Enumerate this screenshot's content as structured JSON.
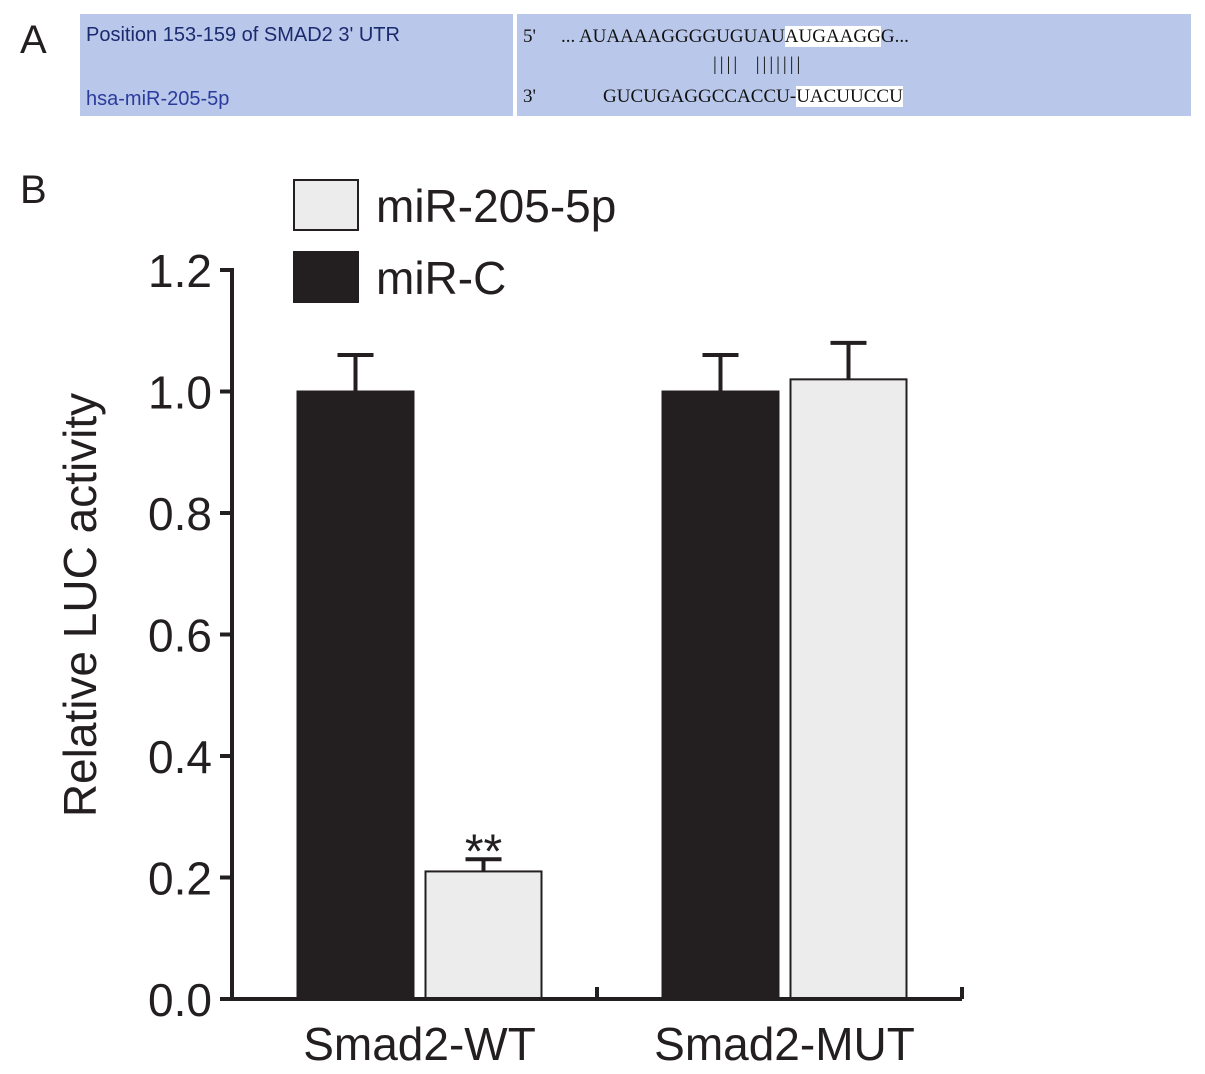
{
  "panels": {
    "a": "A",
    "b": "B"
  },
  "alignment": {
    "utr_label": "Position 153-159 of SMAD2 3' UTR",
    "mir_label": "hsa-miR-205-5p",
    "top_end": "5'",
    "bottom_end": "3'",
    "top_prefix": "...",
    "top_seq_plain": "AUAAAAGGGGUGUAU",
    "top_seq_highlight": "AUGAAGG",
    "top_seq_tail": "G...",
    "pairing": "||||  |||||||",
    "bottom_seq_plain": "GUCUGAGGCCACCU-",
    "bottom_seq_highlight": "UACUUCCU"
  },
  "colors": {
    "box": "#b9c8ea",
    "mir_c": "#231f20",
    "mir_205": "#ececec",
    "axis": "#231f20"
  },
  "chart_data": {
    "type": "bar",
    "ylabel": "Relative LUC activity",
    "xlabel": "",
    "ylim": [
      0,
      1.2
    ],
    "yticks": [
      "0.0",
      "0.2",
      "0.4",
      "0.6",
      "0.8",
      "1.0",
      "1.2"
    ],
    "categories": [
      "Smad2-WT",
      "Smad2-MUT"
    ],
    "legend_position": "top-left",
    "series": [
      {
        "name": "miR-C",
        "color": "#231f20",
        "values": [
          1.0,
          1.0
        ],
        "errors": [
          0.06,
          0.06
        ]
      },
      {
        "name": "miR-205-5p",
        "color": "#ececec",
        "values": [
          0.21,
          1.02
        ],
        "errors": [
          0.02,
          0.06
        ]
      }
    ],
    "legend_order": [
      "miR-205-5p",
      "miR-C"
    ],
    "annotations": [
      {
        "category": "Smad2-WT",
        "series": "miR-205-5p",
        "text": "**"
      }
    ]
  }
}
